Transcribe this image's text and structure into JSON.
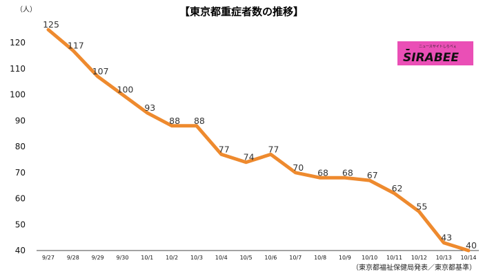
{
  "chart_data": {
    "type": "line",
    "title": "【東京都重症者数の推移】",
    "ylabel": "（人）",
    "xlabel": "",
    "categories": [
      "9/27",
      "9/28",
      "9/29",
      "9/30",
      "10/1",
      "10/2",
      "10/3",
      "10/4",
      "10/5",
      "10/6",
      "10/7",
      "10/8",
      "10/9",
      "10/10",
      "10/11",
      "10/12",
      "10/13",
      "10/14"
    ],
    "series": [
      {
        "name": "東京都重症者数",
        "values": [
          125,
          117,
          107,
          100,
          93,
          88,
          88,
          77,
          74,
          77,
          70,
          68,
          68,
          67,
          62,
          55,
          43,
          40
        ]
      }
    ],
    "yticks": [
      40,
      50,
      60,
      70,
      80,
      90,
      100,
      110,
      120
    ],
    "ylim": [
      40,
      126
    ],
    "source": "（東京都福祉保健局発表／東京都基準）",
    "line_color": "#ee8a2e"
  },
  "logo": {
    "name": "SIRABEE",
    "tagline": "ニュースサイトしらべぇ",
    "background": "#ea4fb6"
  }
}
